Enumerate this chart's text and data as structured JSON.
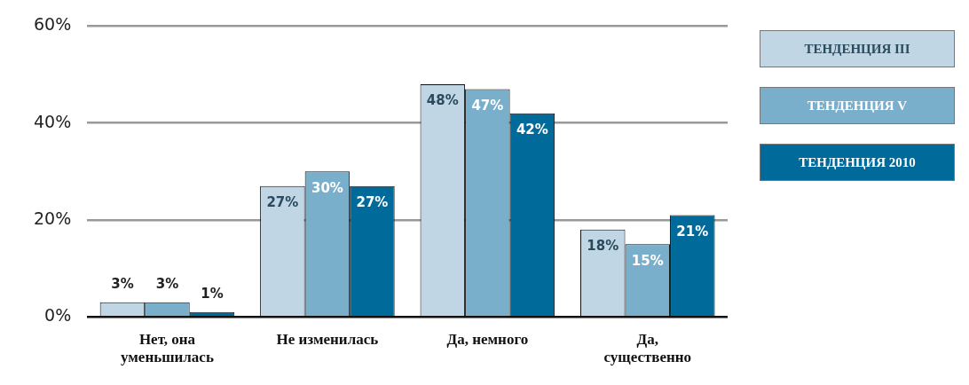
{
  "chart_data": {
    "type": "bar",
    "categories": [
      "Нет, она уменьшилась",
      "Не изменилась",
      "Да, немного",
      "Да, существенно"
    ],
    "series": [
      {
        "name": "ТЕНДЕНЦИЯ III",
        "color": "#c0d6e4",
        "values": [
          3,
          27,
          48,
          18
        ],
        "value_labels": [
          "3%",
          "27%",
          "48%",
          "18%"
        ]
      },
      {
        "name": "ТЕНДЕНЦИЯ V",
        "color": "#7aafcc",
        "values": [
          3,
          30,
          47,
          15
        ],
        "value_labels": [
          "3%",
          "30%",
          "47%",
          "15%"
        ]
      },
      {
        "name": "ТЕНДЕНЦИЯ 2010",
        "color": "#006b9a",
        "values": [
          1,
          27,
          42,
          21
        ],
        "value_labels": [
          "1%",
          "27%",
          "42%",
          "21%"
        ]
      }
    ],
    "ylim": [
      0,
      60
    ],
    "yticks": [
      {
        "value": 0,
        "label": "0%"
      },
      {
        "value": 20,
        "label": "20%"
      },
      {
        "value": 40,
        "label": "40%"
      },
      {
        "value": 60,
        "label": "60%"
      }
    ],
    "grid": "y",
    "legend": "right"
  }
}
